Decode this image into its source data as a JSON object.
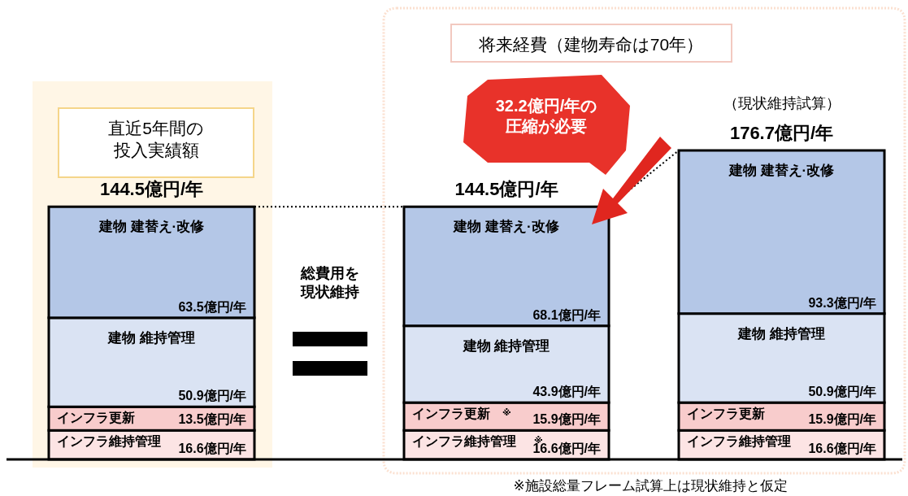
{
  "chart_data": {
    "type": "bar",
    "stacked": true,
    "categories": [
      null,
      null,
      null
    ],
    "series": [
      {
        "name": "インフラ維持管理",
        "color": "#fce4e4",
        "values": [
          16.6,
          16.6,
          16.6
        ],
        "value_labels": [
          "16.6億円/年",
          "16.6億円/年",
          "16.6億円/年"
        ]
      },
      {
        "name": "インフラ更新",
        "color": "#f8cccc",
        "values": [
          13.5,
          15.9,
          15.9
        ],
        "value_labels": [
          "13.5億円/年",
          "15.9億円/年",
          "15.9億円/年"
        ]
      },
      {
        "name": "建物 維持管理",
        "color": "#dae3f3",
        "values": [
          50.9,
          43.9,
          50.9
        ],
        "value_labels": [
          "50.9億円/年",
          "43.9億円/年",
          "50.9億円/年"
        ]
      },
      {
        "name": "建物 建替え·改修",
        "color": "#b4c7e7",
        "values": [
          63.5,
          68.1,
          93.3
        ],
        "value_labels": [
          "63.5億円/年",
          "68.1億円/年",
          "93.3億円/年"
        ]
      }
    ],
    "totals": [
      "144.5億円/年",
      "144.5億円/年",
      "176.7億円/年"
    ],
    "legend": false,
    "annotations": [
      "直近5年間の",
      "投入実績額",
      "将来経費（建物寿命は70年）",
      "（現状維持試算）",
      "32.2億円/年の",
      "圧縮が必要",
      "総費用を",
      "現状維持",
      "※",
      "※",
      "※施設総量フレーム試算上は現状維持と仮定"
    ]
  }
}
